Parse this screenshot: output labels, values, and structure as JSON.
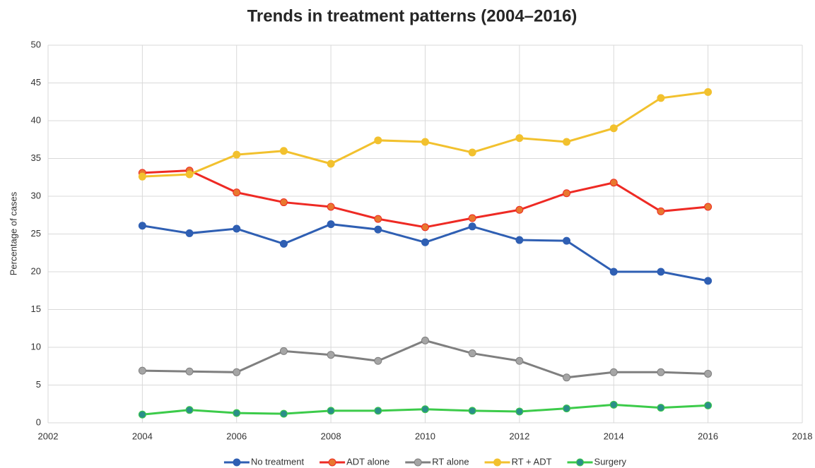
{
  "chart_data": {
    "type": "line",
    "title": "Trends in treatment patterns (2004–2016)",
    "y_label": "Percentage of cases",
    "x": [
      2004,
      2005,
      2006,
      2007,
      2008,
      2009,
      2010,
      2011,
      2012,
      2013,
      2014,
      2015,
      2016
    ],
    "xlim": [
      2002,
      2018
    ],
    "xticks": [
      2002,
      2004,
      2006,
      2008,
      2010,
      2012,
      2014,
      2016,
      2018
    ],
    "ylim": [
      0,
      50
    ],
    "yticks": [
      0,
      5,
      10,
      15,
      20,
      25,
      30,
      35,
      40,
      45,
      50
    ],
    "grid": true,
    "legend": "bottom",
    "series": [
      {
        "name": "No treatment",
        "color": "#2f5fb3",
        "marker_color": "#2f5fb3",
        "values": [
          26.1,
          25.1,
          25.7,
          23.7,
          26.3,
          25.6,
          23.9,
          26.0,
          24.2,
          24.1,
          20.0,
          20.0,
          18.8
        ]
      },
      {
        "name": "ADT alone",
        "color": "#ee2a24",
        "marker_color": "#e8782f",
        "values": [
          33.1,
          33.4,
          30.5,
          29.2,
          28.6,
          27.0,
          25.9,
          27.1,
          28.2,
          30.4,
          31.8,
          28.0,
          28.6
        ]
      },
      {
        "name": "RT alone",
        "color": "#7f7f7f",
        "marker_color": "#a5a5a5",
        "values": [
          6.9,
          6.8,
          6.7,
          9.5,
          9.0,
          8.2,
          10.9,
          9.2,
          8.2,
          6.0,
          6.7,
          6.7,
          6.5
        ]
      },
      {
        "name": "RT + ADT",
        "color": "#f2c12e",
        "marker_color": "#f2c12e",
        "values": [
          32.6,
          32.9,
          35.5,
          36.0,
          34.3,
          37.4,
          37.2,
          35.8,
          37.7,
          37.2,
          39.0,
          43.0,
          43.8
        ]
      },
      {
        "name": "Surgery",
        "color": "#3ccb4a",
        "marker_color": "#2a8f88",
        "values": [
          1.1,
          1.7,
          1.3,
          1.2,
          1.6,
          1.6,
          1.8,
          1.6,
          1.5,
          1.9,
          2.4,
          2.0,
          2.3
        ]
      }
    ]
  }
}
